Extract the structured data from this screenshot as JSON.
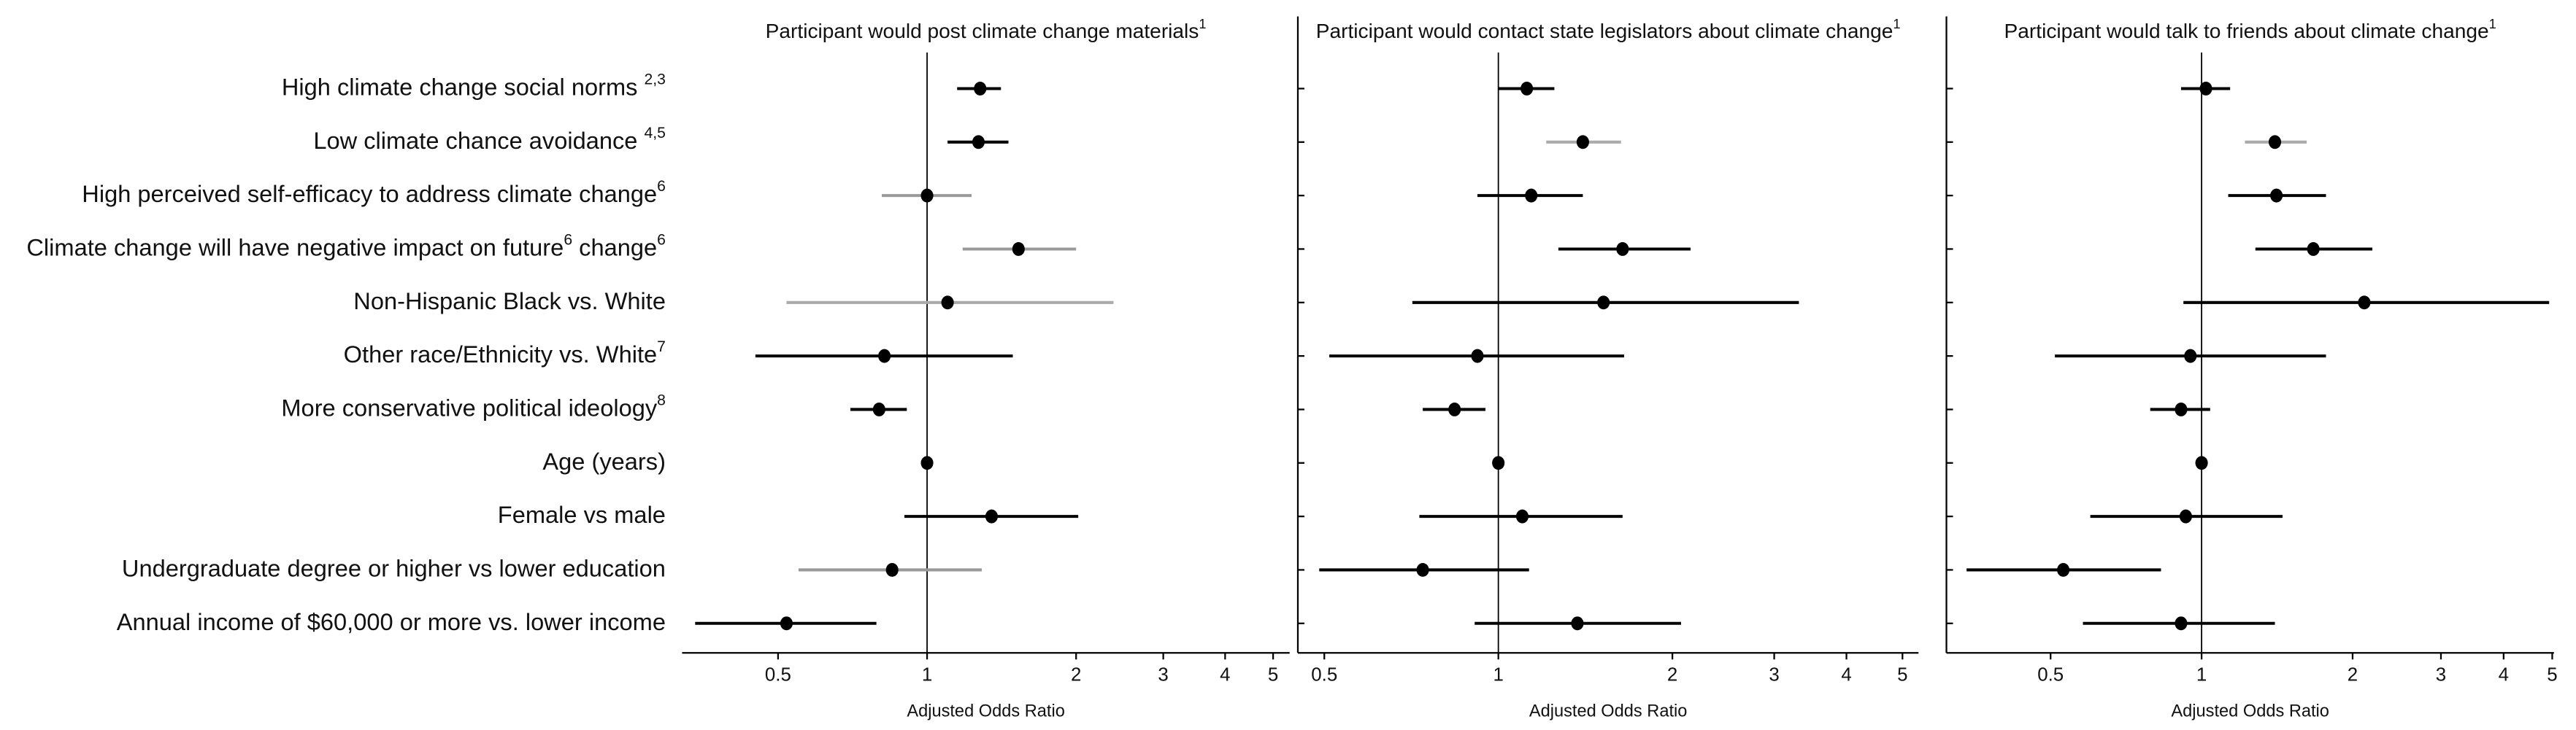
{
  "chart_data": [
    {
      "type": "forest",
      "title": {
        "text": "Participant would post climate change materials",
        "sup": "1"
      },
      "categories": [
        {
          "text": "High climate change social norms ",
          "sup": "2,3"
        },
        {
          "text": "Low climate chance avoidance ",
          "sup": "4,5"
        },
        {
          "text": "High perceived self-efficacy to address climate change",
          "sup": "6"
        },
        {
          "text": "Climate change will have negative impact on future",
          "sup": "6",
          "text2": " change",
          "sup2": "6"
        },
        {
          "text": "Non-Hispanic Black vs. White"
        },
        {
          "text": "Other race/Ethnicity vs. White",
          "sup": "7"
        },
        {
          "text": "More conservative political ideology",
          "sup": "8"
        },
        {
          "text": "Age (years)"
        },
        {
          "text": "Female vs male"
        },
        {
          "text": "Undergraduate degree or higher vs lower education"
        },
        {
          "text": "Annual income of $60,000 or more vs. lower income"
        }
      ],
      "values": [
        1.28,
        1.27,
        1.0,
        1.53,
        1.1,
        0.82,
        0.8,
        1.0,
        1.35,
        0.85,
        0.52
      ],
      "lower": [
        1.15,
        1.1,
        0.81,
        1.18,
        0.52,
        0.45,
        0.7,
        0.99,
        0.9,
        0.55,
        0.34
      ],
      "upper": [
        1.41,
        1.46,
        1.23,
        2.0,
        2.38,
        1.49,
        0.91,
        1.01,
        2.02,
        1.29,
        0.79
      ],
      "colors": [
        "#000",
        "#000",
        "#999",
        "#999",
        "#aaa",
        "#000",
        "#000",
        "#000",
        "#000",
        "#999",
        "#000"
      ],
      "xlim": [
        0.32,
        5.4
      ],
      "xticks": [
        0.5,
        1,
        2,
        3,
        4,
        5
      ],
      "xscale": "log",
      "reference_line": 1,
      "xlabel": "Adjusted Odds Ratio"
    },
    {
      "type": "forest",
      "title": {
        "text": "Participant would contact state legislators about climate change",
        "sup": "1"
      },
      "values": [
        1.12,
        1.4,
        1.14,
        1.64,
        1.52,
        0.92,
        0.84,
        1.0,
        1.1,
        0.74,
        1.37
      ],
      "lower": [
        1.0,
        1.21,
        0.92,
        1.27,
        0.71,
        0.51,
        0.74,
        0.99,
        0.73,
        0.49,
        0.91
      ],
      "upper": [
        1.25,
        1.63,
        1.4,
        2.15,
        3.31,
        1.65,
        0.95,
        1.01,
        1.64,
        1.13,
        2.07
      ],
      "colors": [
        "#000",
        "#aaa",
        "#000",
        "#000",
        "#000",
        "#000",
        "#000",
        "#000",
        "#000",
        "#000",
        "#000"
      ],
      "xlim": [
        0.45,
        5.33
      ],
      "xticks": [
        0.5,
        1,
        2,
        3,
        4,
        5
      ],
      "xscale": "log",
      "reference_line": 1,
      "xlabel": "Adjusted Odds Ratio"
    },
    {
      "type": "forest",
      "title": {
        "text": "Participant would talk to friends about climate change",
        "sup": "1"
      },
      "values": [
        1.02,
        1.4,
        1.41,
        1.67,
        2.11,
        0.95,
        0.91,
        1.0,
        0.93,
        0.53,
        0.91
      ],
      "lower": [
        0.91,
        1.22,
        1.13,
        1.28,
        0.92,
        0.51,
        0.79,
        0.99,
        0.6,
        0.34,
        0.58
      ],
      "upper": [
        1.14,
        1.62,
        1.77,
        2.19,
        4.93,
        1.77,
        1.04,
        1.01,
        1.45,
        0.83,
        1.4
      ],
      "colors": [
        "#000",
        "#aaa",
        "#000",
        "#000",
        "#000",
        "#000",
        "#000",
        "#000",
        "#000",
        "#000",
        "#000"
      ],
      "xlim": [
        0.31,
        5.04
      ],
      "xticks": [
        0.5,
        1,
        2,
        3,
        4,
        5
      ],
      "xscale": "log",
      "reference_line": 1,
      "xlabel": "Adjusted Odds Ratio"
    }
  ]
}
